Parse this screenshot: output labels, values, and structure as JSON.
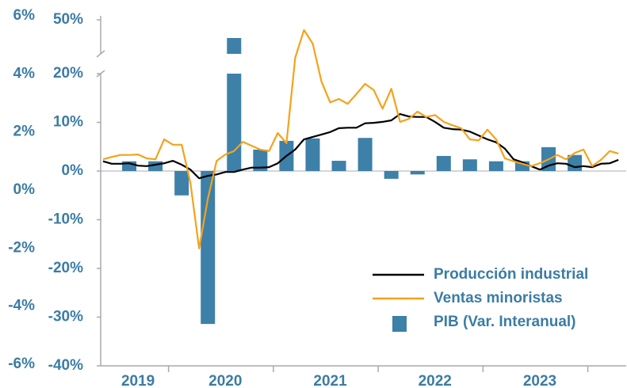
{
  "chart_data": {
    "type": "combo",
    "categories": [
      null,
      null,
      null,
      null,
      "2019",
      null,
      null,
      null,
      null,
      null,
      null,
      null,
      null,
      null,
      "2020",
      null,
      null,
      null,
      null,
      null,
      null,
      null,
      null,
      null,
      null,
      null,
      "2021",
      null,
      null,
      null,
      null,
      null,
      null,
      null,
      null,
      null,
      null,
      null,
      "2022",
      null,
      null,
      null,
      null,
      null,
      null,
      null,
      null,
      null,
      null,
      null,
      "2023",
      null,
      null,
      null,
      null,
      null,
      null,
      null,
      null,
      null
    ],
    "series": [
      {
        "name": "Producción industrial",
        "kind": "line",
        "color": "#000000",
        "values": [
          2.0,
          1.5,
          1.5,
          1.6,
          1.1,
          1.0,
          1.3,
          1.6,
          2.1,
          1.3,
          0.3,
          -1.5,
          -1.0,
          -0.7,
          -0.2,
          -0.2,
          0.3,
          0.7,
          0.7,
          0.8,
          1.6,
          3.1,
          4.4,
          6.5,
          7.0,
          7.5,
          8.0,
          8.8,
          8.9,
          8.9,
          9.8,
          9.9,
          10.1,
          10.4,
          11.7,
          11.2,
          11.1,
          11.1,
          10.1,
          8.9,
          8.6,
          8.5,
          8.1,
          7.3,
          6.5,
          5.9,
          4.6,
          2.4,
          1.8,
          1.0,
          0.3,
          1.1,
          1.6,
          1.5,
          0.8,
          1.0,
          0.8,
          1.5,
          1.6,
          2.3
        ]
      },
      {
        "name": "Ventas minoristas",
        "kind": "line",
        "color": "#f5a21b",
        "values": [
          2.4,
          2.9,
          3.3,
          3.3,
          3.4,
          2.6,
          2.4,
          6.5,
          5.4,
          5.4,
          -2.4,
          -15.9,
          -5.7,
          2.1,
          3.4,
          4.1,
          6.0,
          5.2,
          4.4,
          4.1,
          7.8,
          5.7,
          28,
          44,
          36,
          18.4,
          14.1,
          14.8,
          13.8,
          15.8,
          17.9,
          16.6,
          12.8,
          16.9,
          10.1,
          10.7,
          12.2,
          11.1,
          11.5,
          10.1,
          9.4,
          8.8,
          6.5,
          6.3,
          8.5,
          6.5,
          2.6,
          2.0,
          1.5,
          1.0,
          1.6,
          2.4,
          3.3,
          2.4,
          3.7,
          4.4,
          1.0,
          2.3,
          4.1,
          3.6
        ]
      },
      {
        "name": "PIB (Var. Interanual)",
        "kind": "bar",
        "color": "#3d80a8",
        "values": [
          null,
          null,
          null,
          2.0,
          null,
          null,
          2.0,
          null,
          null,
          -5.0,
          null,
          null,
          -31.4,
          null,
          null,
          39.3,
          null,
          null,
          4.4,
          null,
          null,
          6.2,
          null,
          null,
          6.7,
          null,
          null,
          2.1,
          null,
          null,
          6.8,
          null,
          null,
          -1.6,
          null,
          null,
          -0.7,
          null,
          null,
          3.1,
          null,
          null,
          2.4,
          null,
          null,
          2.0,
          null,
          null,
          2.0,
          null,
          null,
          4.9,
          null,
          null,
          3.3,
          null,
          null,
          null,
          null,
          null
        ]
      }
    ],
    "ylim": [
      -40,
      50
    ],
    "axis_break": [
      20,
      30
    ],
    "yticks": [
      {
        "value": 50,
        "label": "50%"
      },
      {
        "value": 20,
        "label": "20%"
      },
      {
        "value": 10,
        "label": "10%"
      },
      {
        "value": 0,
        "label": "0%"
      },
      {
        "value": -10,
        "label": "-10%"
      },
      {
        "value": -20,
        "label": "-20%"
      },
      {
        "value": -30,
        "label": "-30%"
      },
      {
        "value": -40,
        "label": "-40%"
      }
    ],
    "y2lim": [
      -6,
      6
    ],
    "y2ticks": [
      {
        "value": 6,
        "label": "6%"
      },
      {
        "value": 4,
        "label": "4%"
      },
      {
        "value": 2,
        "label": "2%"
      },
      {
        "value": 0,
        "label": "0%"
      },
      {
        "value": -2,
        "label": "-2%"
      },
      {
        "value": -4,
        "label": "-4%"
      },
      {
        "value": -6,
        "label": "-6%"
      }
    ],
    "legend": "lower right"
  }
}
